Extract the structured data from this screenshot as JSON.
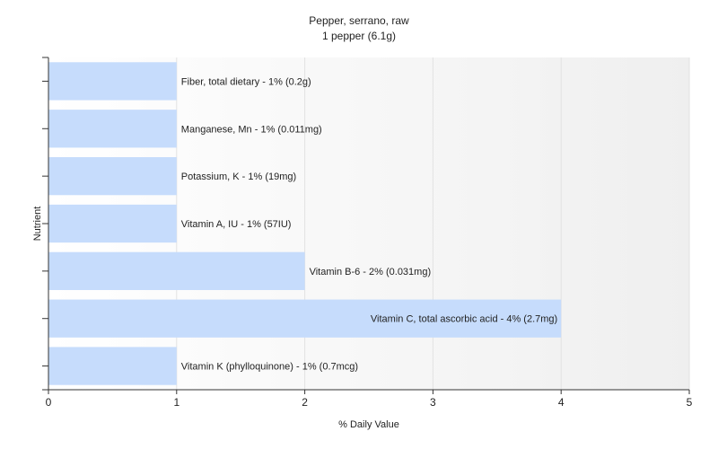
{
  "chart_data": {
    "type": "bar",
    "orientation": "horizontal",
    "title": "Pepper, serrano, raw",
    "subtitle": "1 pepper (6.1g)",
    "xlabel": "% Daily Value",
    "ylabel": "Nutrient",
    "xlim": [
      0,
      5
    ],
    "xticks": [
      0,
      1,
      2,
      3,
      4,
      5
    ],
    "grid": true,
    "bar_color": "#c6dcfc",
    "categories": [
      "Fiber, total dietary",
      "Manganese, Mn",
      "Potassium, K",
      "Vitamin A, IU",
      "Vitamin B-6",
      "Vitamin C, total ascorbic acid",
      "Vitamin K (phylloquinone)"
    ],
    "values": [
      1,
      1,
      1,
      1,
      2,
      4,
      1
    ],
    "labels": [
      "Fiber, total dietary - 1% (0.2g)",
      "Manganese, Mn - 1% (0.011mg)",
      "Potassium, K - 1% (19mg)",
      "Vitamin A, IU - 1% (57IU)",
      "Vitamin B-6 - 2% (0.031mg)",
      "Vitamin C, total ascorbic acid - 4% (2.7mg)",
      "Vitamin K (phylloquinone) - 1% (0.7mcg)"
    ]
  }
}
